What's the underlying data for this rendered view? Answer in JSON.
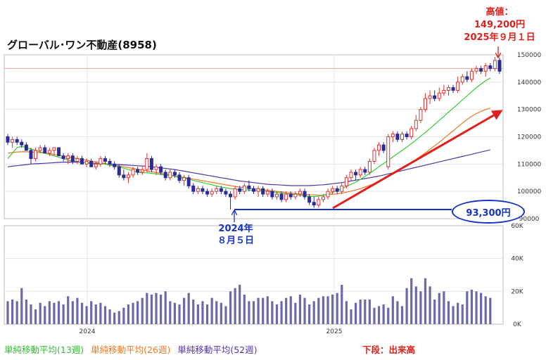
{
  "title": "グローバル･ワン不動産(8958)",
  "annotations": {
    "peak_label": "高値：",
    "peak_price": "149,200円",
    "peak_date": "2025年９月１日",
    "low_date_line1": "2024年",
    "low_date_line2": "８月５日",
    "low_price": "93,300円"
  },
  "legend": {
    "ma13": "単純移動平均(13週)",
    "ma26": "単純移動平均(26週)",
    "ma52": "単純移動平均(52週)"
  },
  "volume_note": "下段：出来高",
  "colors": {
    "candle_up": "#e03030",
    "candle_down": "#2a2a9a",
    "ma13": "#33cc33",
    "ma26": "#ee7722",
    "ma52": "#5533aa",
    "volume": "#6a6aaa",
    "annotation_red": "#e0201c",
    "annotation_blue": "#1633c8",
    "reference_line": "#f2a0a0"
  },
  "chart_data": [
    {
      "type": "candlestick",
      "title": "グローバル･ワン不動産(8958)",
      "frequency": "weekly",
      "ylim": [
        90000,
        150000
      ],
      "y_ticks": [
        "150000",
        "140000",
        "130000",
        "120000",
        "110000",
        "100000",
        "90000"
      ],
      "x_ticks": [
        "2024",
        "2025"
      ],
      "reference_line": 145000,
      "grid": true,
      "candles": [
        {
          "o": 120000,
          "h": 121000,
          "l": 117000,
          "c": 118000
        },
        {
          "o": 118000,
          "h": 120000,
          "l": 116000,
          "c": 119000
        },
        {
          "o": 119000,
          "h": 120000,
          "l": 117000,
          "c": 118000
        },
        {
          "o": 118000,
          "h": 119000,
          "l": 116000,
          "c": 117000
        },
        {
          "o": 117000,
          "h": 118000,
          "l": 115000,
          "c": 115000
        },
        {
          "o": 115000,
          "h": 116000,
          "l": 110000,
          "c": 112000
        },
        {
          "o": 112000,
          "h": 116000,
          "l": 111000,
          "c": 115000
        },
        {
          "o": 115000,
          "h": 117000,
          "l": 114000,
          "c": 116000
        },
        {
          "o": 116000,
          "h": 117000,
          "l": 114000,
          "c": 114000
        },
        {
          "o": 114000,
          "h": 116000,
          "l": 113000,
          "c": 115000
        },
        {
          "o": 115000,
          "h": 116000,
          "l": 113000,
          "c": 116000
        },
        {
          "o": 116000,
          "h": 116000,
          "l": 113000,
          "c": 113000
        },
        {
          "o": 113000,
          "h": 114000,
          "l": 111000,
          "c": 112000
        },
        {
          "o": 112000,
          "h": 114000,
          "l": 110000,
          "c": 113000
        },
        {
          "o": 113000,
          "h": 114000,
          "l": 110000,
          "c": 111000
        },
        {
          "o": 111000,
          "h": 113000,
          "l": 110000,
          "c": 112000
        },
        {
          "o": 112000,
          "h": 113000,
          "l": 110000,
          "c": 110000
        },
        {
          "o": 110000,
          "h": 112000,
          "l": 109000,
          "c": 111000
        },
        {
          "o": 111000,
          "h": 112000,
          "l": 109000,
          "c": 109000
        },
        {
          "o": 109000,
          "h": 111000,
          "l": 108000,
          "c": 110000
        },
        {
          "o": 110000,
          "h": 113000,
          "l": 109000,
          "c": 112000
        },
        {
          "o": 112000,
          "h": 113000,
          "l": 110000,
          "c": 111000
        },
        {
          "o": 111000,
          "h": 112000,
          "l": 109000,
          "c": 110000
        },
        {
          "o": 110000,
          "h": 111000,
          "l": 108000,
          "c": 109000
        },
        {
          "o": 109000,
          "h": 110000,
          "l": 105000,
          "c": 106000
        },
        {
          "o": 106000,
          "h": 108000,
          "l": 104000,
          "c": 105000
        },
        {
          "o": 105000,
          "h": 107000,
          "l": 103000,
          "c": 106000
        },
        {
          "o": 106000,
          "h": 109000,
          "l": 105000,
          "c": 108000
        },
        {
          "o": 108000,
          "h": 109000,
          "l": 106000,
          "c": 107000
        },
        {
          "o": 107000,
          "h": 109000,
          "l": 106000,
          "c": 108000
        },
        {
          "o": 108000,
          "h": 114000,
          "l": 107000,
          "c": 112000
        },
        {
          "o": 112000,
          "h": 113000,
          "l": 107000,
          "c": 108000
        },
        {
          "o": 108000,
          "h": 110000,
          "l": 106000,
          "c": 109000
        },
        {
          "o": 109000,
          "h": 110000,
          "l": 106000,
          "c": 107000
        },
        {
          "o": 107000,
          "h": 108000,
          "l": 104000,
          "c": 105000
        },
        {
          "o": 105000,
          "h": 108000,
          "l": 104000,
          "c": 107000
        },
        {
          "o": 107000,
          "h": 108000,
          "l": 105000,
          "c": 106000
        },
        {
          "o": 106000,
          "h": 107000,
          "l": 103000,
          "c": 104000
        },
        {
          "o": 104000,
          "h": 106000,
          "l": 102000,
          "c": 105000
        },
        {
          "o": 105000,
          "h": 106000,
          "l": 101000,
          "c": 102000
        },
        {
          "o": 102000,
          "h": 103000,
          "l": 99000,
          "c": 100000
        },
        {
          "o": 100000,
          "h": 102000,
          "l": 99000,
          "c": 101000
        },
        {
          "o": 101000,
          "h": 102000,
          "l": 99000,
          "c": 100000
        },
        {
          "o": 100000,
          "h": 101000,
          "l": 98000,
          "c": 99000
        },
        {
          "o": 99000,
          "h": 101000,
          "l": 98000,
          "c": 100000
        },
        {
          "o": 100000,
          "h": 102000,
          "l": 99000,
          "c": 101000
        },
        {
          "o": 101000,
          "h": 102000,
          "l": 99000,
          "c": 100000
        },
        {
          "o": 100000,
          "h": 101000,
          "l": 98000,
          "c": 99000
        },
        {
          "o": 99000,
          "h": 100000,
          "l": 93300,
          "c": 98000
        },
        {
          "o": 98000,
          "h": 102000,
          "l": 97000,
          "c": 101000
        },
        {
          "o": 101000,
          "h": 102000,
          "l": 99000,
          "c": 100000
        },
        {
          "o": 100000,
          "h": 103000,
          "l": 99000,
          "c": 102000
        },
        {
          "o": 102000,
          "h": 104000,
          "l": 100000,
          "c": 101000
        },
        {
          "o": 101000,
          "h": 102000,
          "l": 99000,
          "c": 100000
        },
        {
          "o": 100000,
          "h": 102000,
          "l": 98000,
          "c": 101000
        },
        {
          "o": 101000,
          "h": 102000,
          "l": 98000,
          "c": 99000
        },
        {
          "o": 99000,
          "h": 101000,
          "l": 98000,
          "c": 100000
        },
        {
          "o": 100000,
          "h": 101000,
          "l": 97000,
          "c": 98000
        },
        {
          "o": 98000,
          "h": 100000,
          "l": 97000,
          "c": 99000
        },
        {
          "o": 99000,
          "h": 100000,
          "l": 96000,
          "c": 97000
        },
        {
          "o": 97000,
          "h": 100000,
          "l": 96000,
          "c": 99000
        },
        {
          "o": 99000,
          "h": 100000,
          "l": 97000,
          "c": 98000
        },
        {
          "o": 98000,
          "h": 100000,
          "l": 97000,
          "c": 99000
        },
        {
          "o": 99000,
          "h": 101000,
          "l": 98000,
          "c": 100000
        },
        {
          "o": 100000,
          "h": 101000,
          "l": 97000,
          "c": 98000
        },
        {
          "o": 98000,
          "h": 99000,
          "l": 95000,
          "c": 96000
        },
        {
          "o": 96000,
          "h": 98000,
          "l": 94000,
          "c": 95000
        },
        {
          "o": 95000,
          "h": 98000,
          "l": 94000,
          "c": 97000
        },
        {
          "o": 97000,
          "h": 99000,
          "l": 96000,
          "c": 98000
        },
        {
          "o": 98000,
          "h": 101000,
          "l": 97000,
          "c": 100000
        },
        {
          "o": 100000,
          "h": 102000,
          "l": 99000,
          "c": 101000
        },
        {
          "o": 101000,
          "h": 102000,
          "l": 99000,
          "c": 100000
        },
        {
          "o": 100000,
          "h": 103000,
          "l": 99000,
          "c": 102000
        },
        {
          "o": 102000,
          "h": 106000,
          "l": 101000,
          "c": 105000
        },
        {
          "o": 105000,
          "h": 108000,
          "l": 104000,
          "c": 107000
        },
        {
          "o": 107000,
          "h": 108000,
          "l": 104000,
          "c": 106000
        },
        {
          "o": 106000,
          "h": 109000,
          "l": 105000,
          "c": 108000
        },
        {
          "o": 108000,
          "h": 109000,
          "l": 106000,
          "c": 107000
        },
        {
          "o": 107000,
          "h": 112000,
          "l": 106000,
          "c": 111000
        },
        {
          "o": 111000,
          "h": 116000,
          "l": 110000,
          "c": 115000
        },
        {
          "o": 115000,
          "h": 118000,
          "l": 113000,
          "c": 117000
        },
        {
          "o": 117000,
          "h": 118000,
          "l": 114000,
          "c": 115000
        },
        {
          "o": 109000,
          "h": 121000,
          "l": 108000,
          "c": 120000
        },
        {
          "o": 120000,
          "h": 122000,
          "l": 118000,
          "c": 121000
        },
        {
          "o": 121000,
          "h": 122000,
          "l": 118000,
          "c": 119000
        },
        {
          "o": 119000,
          "h": 122000,
          "l": 118000,
          "c": 121000
        },
        {
          "o": 121000,
          "h": 122000,
          "l": 119000,
          "c": 120000
        },
        {
          "o": 120000,
          "h": 124000,
          "l": 119000,
          "c": 123000
        },
        {
          "o": 123000,
          "h": 128000,
          "l": 122000,
          "c": 126000
        },
        {
          "o": 126000,
          "h": 131000,
          "l": 125000,
          "c": 130000
        },
        {
          "o": 130000,
          "h": 136000,
          "l": 129000,
          "c": 134000
        },
        {
          "o": 134000,
          "h": 137000,
          "l": 132000,
          "c": 135000
        },
        {
          "o": 135000,
          "h": 137000,
          "l": 133000,
          "c": 134000
        },
        {
          "o": 134000,
          "h": 138000,
          "l": 133000,
          "c": 136000
        },
        {
          "o": 136000,
          "h": 139000,
          "l": 135000,
          "c": 137000
        },
        {
          "o": 137000,
          "h": 139000,
          "l": 135000,
          "c": 138000
        },
        {
          "o": 138000,
          "h": 139000,
          "l": 136000,
          "c": 137000
        },
        {
          "o": 137000,
          "h": 142000,
          "l": 136000,
          "c": 140000
        },
        {
          "o": 140000,
          "h": 143000,
          "l": 139000,
          "c": 142000
        },
        {
          "o": 142000,
          "h": 144000,
          "l": 140000,
          "c": 141000
        },
        {
          "o": 141000,
          "h": 145000,
          "l": 140000,
          "c": 144000
        },
        {
          "o": 144000,
          "h": 146000,
          "l": 143000,
          "c": 145000
        },
        {
          "o": 145000,
          "h": 146000,
          "l": 143000,
          "c": 144000
        },
        {
          "o": 144000,
          "h": 147000,
          "l": 142000,
          "c": 146000
        },
        {
          "o": 146000,
          "h": 147000,
          "l": 144000,
          "c": 145000
        },
        {
          "o": 145000,
          "h": 149200,
          "l": 144000,
          "c": 148000
        },
        {
          "o": 148000,
          "h": 149000,
          "l": 143000,
          "c": 144000
        }
      ],
      "ma13": [
        112000,
        114000,
        116000,
        116500,
        116000,
        115500,
        115000,
        114500,
        114000,
        113500,
        113000,
        112500,
        112000,
        111500,
        111000,
        111000,
        110500,
        110500,
        110000,
        110000,
        110000,
        110000,
        109500,
        109500,
        109000,
        108500,
        108000,
        107500,
        107000,
        106800,
        106800,
        106600,
        106400,
        106200,
        106000,
        105800,
        105500,
        105000,
        104800,
        104500,
        104000,
        103600,
        103200,
        102800,
        102400,
        102000,
        101600,
        101300,
        101000,
        100800,
        100600,
        100600,
        100500,
        100400,
        100300,
        100200,
        100000,
        99800,
        99600,
        99400,
        99200,
        99000,
        98800,
        98600,
        98400,
        98200,
        98100,
        98200,
        98600,
        99000,
        99600,
        100300,
        101000,
        101800,
        102600,
        103400,
        104400,
        105500,
        106600,
        107800,
        109000,
        110200,
        111400,
        112600,
        113800,
        115000,
        116200,
        117500,
        118800,
        120200,
        121600,
        123000,
        124500,
        126000,
        127500,
        129000,
        130500,
        132000,
        133500,
        135000,
        136500,
        138000,
        139300,
        140500,
        141500
      ],
      "ma26": [
        114000,
        114200,
        114400,
        114500,
        114500,
        114400,
        114300,
        114200,
        114000,
        113800,
        113500,
        113200,
        112900,
        112600,
        112300,
        112000,
        111700,
        111400,
        111100,
        110800,
        110500,
        110200,
        109900,
        109600,
        109300,
        109000,
        108700,
        108400,
        108100,
        107800,
        107500,
        107200,
        106900,
        106600,
        106300,
        106000,
        105700,
        105400,
        105100,
        104800,
        104500,
        104200,
        103900,
        103600,
        103300,
        103000,
        102700,
        102400,
        102100,
        101800,
        101600,
        101400,
        101200,
        101000,
        100800,
        100600,
        100400,
        100200,
        100000,
        99800,
        99600,
        99400,
        99200,
        99000,
        98900,
        98800,
        98700,
        98600,
        98600,
        98700,
        98900,
        99100,
        99400,
        99700,
        100100,
        100500,
        101000,
        101600,
        102200,
        102900,
        103700,
        104500,
        105400,
        106300,
        107300,
        108300,
        109400,
        110500,
        111700,
        112900,
        114100,
        115400,
        116700,
        118000,
        119400,
        120800,
        122200,
        123600,
        125000,
        126300,
        127500,
        128500,
        129300,
        130000,
        130500
      ],
      "ma52": [
        109000,
        109200,
        109400,
        109600,
        109800,
        110000,
        110100,
        110200,
        110300,
        110400,
        110500,
        110600,
        110700,
        110700,
        110700,
        110700,
        110600,
        110500,
        110400,
        110300,
        110200,
        110100,
        110000,
        109900,
        109800,
        109700,
        109600,
        109500,
        109400,
        109300,
        109200,
        109000,
        108800,
        108600,
        108400,
        108200,
        108000,
        107700,
        107400,
        107100,
        106800,
        106500,
        106200,
        105900,
        105600,
        105300,
        105000,
        104700,
        104400,
        104100,
        103800,
        103600,
        103400,
        103200,
        103000,
        102800,
        102600,
        102500,
        102400,
        102300,
        102200,
        102100,
        102100,
        102100,
        102100,
        102100,
        102200,
        102300,
        102400,
        102600,
        102800,
        103000,
        103200,
        103500,
        103800,
        104100,
        104400,
        104700,
        105000,
        105300,
        105600,
        106000,
        106400,
        106800,
        107200,
        107600,
        108000,
        108400,
        108800,
        109200,
        109600,
        110000,
        110400,
        110800,
        111200,
        111600,
        112000,
        112400,
        112800,
        113200,
        113600,
        114000,
        114400,
        114800,
        115200
      ]
    },
    {
      "type": "bar",
      "title": "下段：出来高",
      "ylim": [
        0,
        60000
      ],
      "y_ticks": [
        "60K",
        "40K",
        "20K",
        "0K"
      ],
      "x_ticks": [
        "2024",
        "2025"
      ],
      "values": [
        14000,
        15000,
        14000,
        22000,
        15000,
        12000,
        9000,
        13000,
        11000,
        14000,
        13000,
        14000,
        12000,
        17000,
        14000,
        16000,
        13000,
        11000,
        14000,
        12000,
        13000,
        11000,
        9000,
        7000,
        8000,
        10000,
        12000,
        13000,
        14000,
        16000,
        19000,
        18000,
        19000,
        18000,
        20000,
        14000,
        13000,
        12000,
        16000,
        19000,
        15000,
        12000,
        14000,
        12000,
        16000,
        14000,
        13000,
        11000,
        20000,
        22000,
        24000,
        18000,
        14000,
        14000,
        16000,
        16000,
        17000,
        14000,
        12000,
        14000,
        16000,
        17000,
        13000,
        18000,
        16000,
        12000,
        14000,
        16000,
        17000,
        17000,
        18000,
        19000,
        24000,
        14000,
        9000,
        13000,
        15000,
        15000,
        15000,
        10000,
        11000,
        12000,
        10000,
        17000,
        14000,
        11000,
        22000,
        28000,
        23000,
        20000,
        28000,
        23000,
        15000,
        19000,
        20000,
        14000,
        11000,
        13000,
        12000,
        20000,
        21000,
        20000,
        19000,
        17000,
        16000
      ]
    }
  ]
}
